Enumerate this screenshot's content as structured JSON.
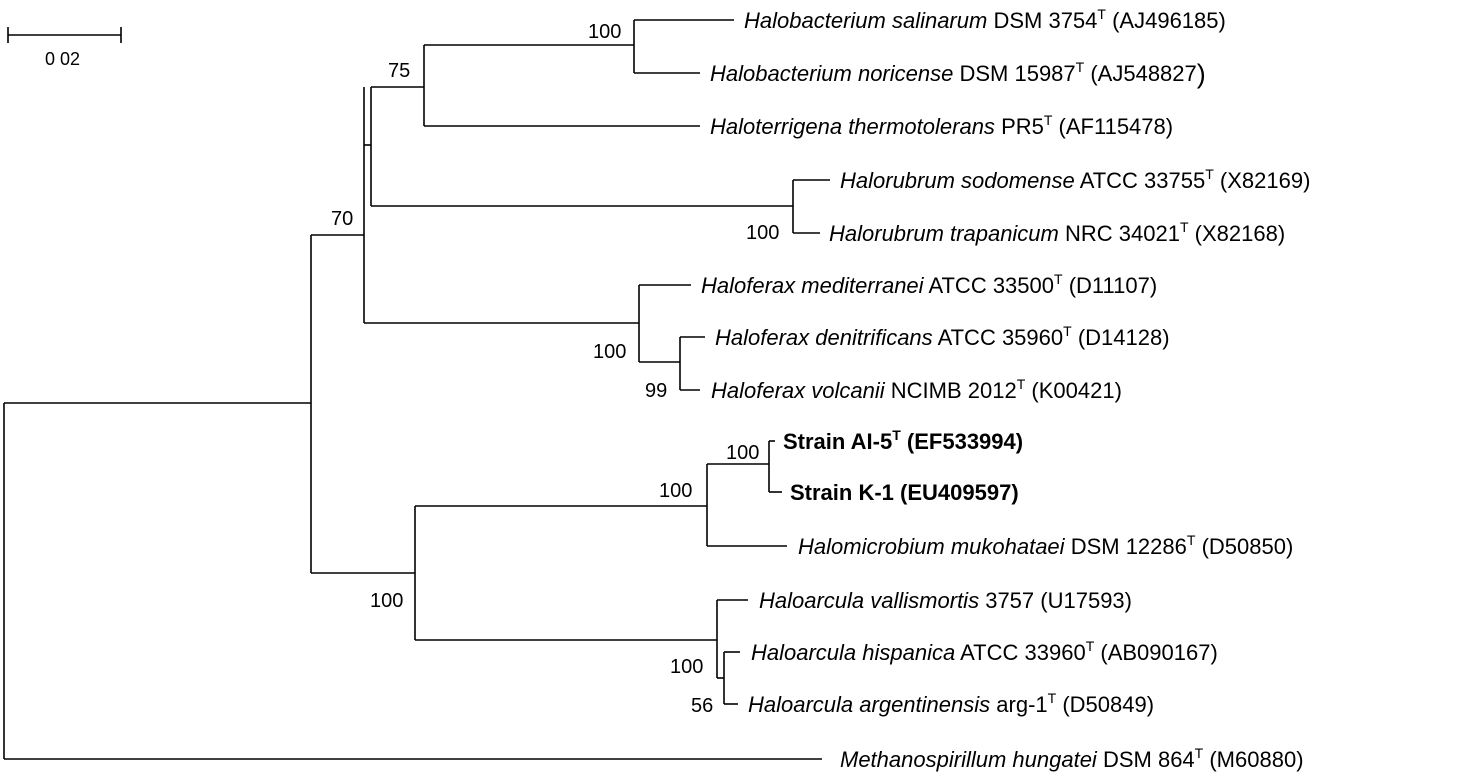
{
  "scale_bar": {
    "label": "0 02"
  },
  "superscript": "T",
  "bootstrap": {
    "n75": "75",
    "n70": "70",
    "halobacterium": "100",
    "halorubrum": "100",
    "haloferax": "100",
    "haloferax_inner": "99",
    "strain_clade": "100",
    "strain_pair": "100",
    "major_clade": "100",
    "haloarcula": "100",
    "haloarcula_inner": "56"
  },
  "taxa": [
    {
      "name": "Halobacterium salinarum",
      "strain": "DSM 3754",
      "type_strain": true,
      "accession": "(AJ496185)"
    },
    {
      "name": "Halobacterium noricense",
      "strain": "DSM 15987",
      "type_strain": true,
      "accession": "(AJ548827"
    },
    {
      "name": "Haloterrigena thermotolerans",
      "strain": "PR5",
      "type_strain": true,
      "accession": "(AF115478)"
    },
    {
      "name": "Halorubrum sodomense",
      "strain": "ATCC 33755",
      "type_strain": true,
      "accession": "(X82169)"
    },
    {
      "name": "Halorubrum trapanicum",
      "strain": "NRC 34021",
      "type_strain": true,
      "accession": "(X82168)"
    },
    {
      "name": "Haloferax mediterranei",
      "strain": "ATCC 33500",
      "type_strain": true,
      "accession": "(D11107)"
    },
    {
      "name": "Haloferax denitrificans",
      "strain": "ATCC 35960",
      "type_strain": true,
      "accession": "(D14128)"
    },
    {
      "name": "Haloferax volcanii",
      "strain": "NCIMB 2012",
      "type_strain": true,
      "accession": "(K00421)"
    },
    {
      "label": "Strain AI-5",
      "type_strain": true,
      "accession": "(EF533994)",
      "highlight": true
    },
    {
      "label": "Strain K-1",
      "accession": "(EU409597)",
      "highlight": true
    },
    {
      "name": "Halomicrobium mukohataei",
      "strain": "DSM 12286",
      "type_strain": true,
      "accession": "(D50850)"
    },
    {
      "name": "Haloarcula vallismortis",
      "strain": "3757",
      "accession": "(U17593)"
    },
    {
      "name": "Haloarcula hispanica",
      "strain": "ATCC 33960",
      "type_strain": true,
      "accession": "(AB090167)"
    },
    {
      "name": "Haloarcula argentinensis",
      "strain": "arg-1",
      "type_strain": true,
      "accession": "(D50849)"
    },
    {
      "name": "Methanospirillum hungatei",
      "strain": "DSM 864",
      "type_strain": true,
      "accession": "(M60880)"
    }
  ]
}
